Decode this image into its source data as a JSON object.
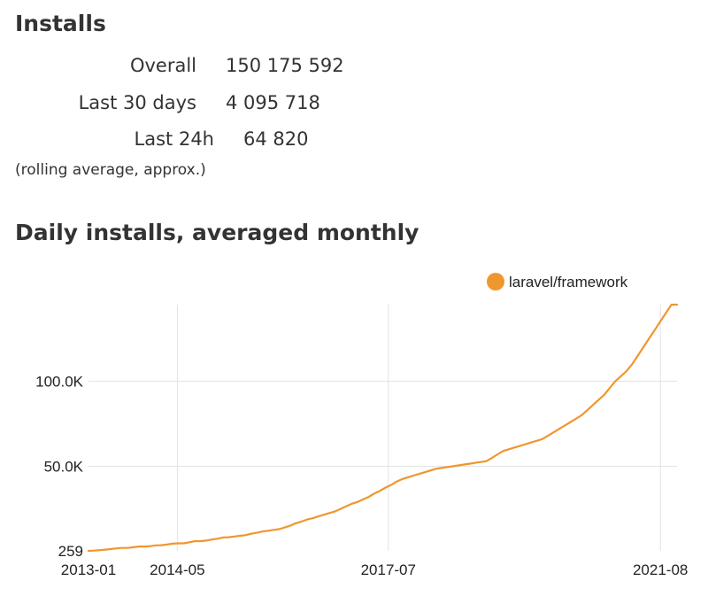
{
  "installs": {
    "title": "Installs",
    "stats": [
      {
        "label": "Overall",
        "value": "150 175 592"
      },
      {
        "label": "Last 30 days",
        "value": "4 095 718"
      },
      {
        "label": "Last 24h",
        "value": "64 820"
      }
    ],
    "note": "(rolling average, approx.)"
  },
  "chart": {
    "title": "Daily installs, averaged monthly"
  },
  "colors": {
    "series": "#f0962e",
    "grid": "#e3e3e3",
    "text": "#333333"
  },
  "chart_data": {
    "type": "line",
    "title": "Daily installs, averaged monthly",
    "xlabel": "",
    "ylabel": "",
    "x_start": "2013-01",
    "x_end": "2021-11",
    "x_ticks": [
      "2013-01",
      "2014-05",
      "2017-07",
      "2021-08"
    ],
    "y_ticks": [
      259,
      50000,
      100000
    ],
    "y_tick_labels": [
      "259",
      "50.0K",
      "100.0K"
    ],
    "ylim": [
      259,
      145000
    ],
    "grid": true,
    "legend": "top-right",
    "series": [
      {
        "name": "laravel/framework",
        "values": [
          259,
          400,
          700,
          1000,
          1300,
          1700,
          2000,
          2000,
          2400,
          2800,
          2800,
          3000,
          3500,
          3600,
          4000,
          4500,
          4700,
          4700,
          5300,
          6000,
          6000,
          6300,
          6900,
          7400,
          8100,
          8300,
          8700,
          9100,
          9500,
          10300,
          10900,
          11600,
          12100,
          12600,
          13000,
          14000,
          15100,
          16500,
          17500,
          18700,
          19400,
          20500,
          21500,
          22500,
          23500,
          25000,
          26500,
          28000,
          29000,
          30500,
          32000,
          34000,
          35500,
          37500,
          39000,
          41000,
          42500,
          43500,
          44500,
          45500,
          46500,
          47500,
          48500,
          49000,
          49500,
          50000,
          50500,
          51000,
          51500,
          52000,
          52500,
          53000,
          55000,
          57000,
          59000,
          60000,
          61000,
          62000,
          63000,
          64000,
          65000,
          66000,
          68000,
          70000,
          72000,
          74000,
          76000,
          78000,
          80000,
          83000,
          86000,
          89000,
          92000,
          96000,
          100000,
          103000,
          106000,
          110000,
          115000,
          120000,
          125000,
          130000,
          135000,
          140000,
          145000,
          145000
        ]
      }
    ]
  }
}
